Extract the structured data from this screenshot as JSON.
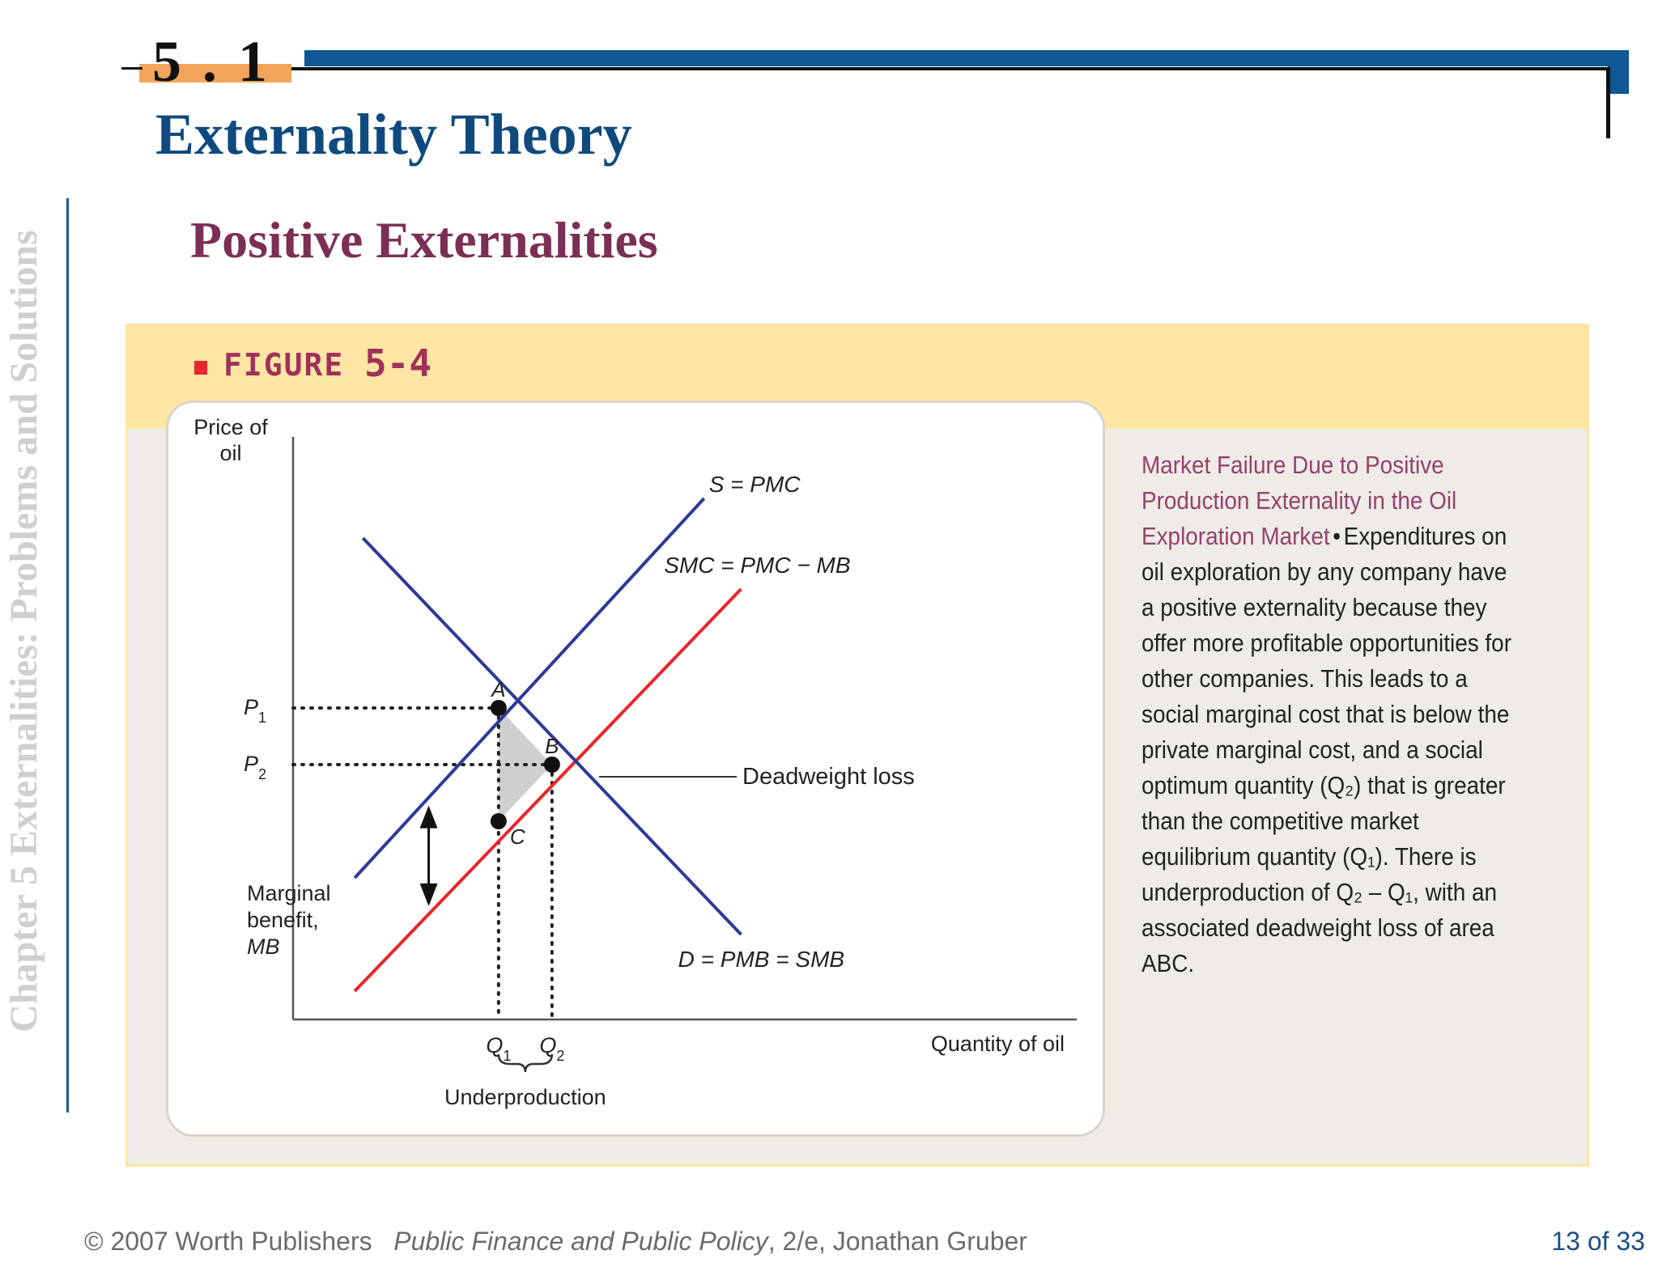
{
  "sidebar": {
    "text": "Chapter 5  Externalities: Problems and Solutions"
  },
  "header": {
    "section_number": "5 . 1",
    "title": "Externality Theory"
  },
  "subtitle": "Positive Externalities",
  "figure": {
    "label_word": "FIGURE",
    "label_number": "5-4"
  },
  "chart_data": {
    "type": "line",
    "title": "",
    "xlabel": "Quantity of oil",
    "ylabel": "Price of oil",
    "ylabel_lines": [
      "Price of",
      "oil"
    ],
    "x_ticks": [
      {
        "main": "Q",
        "sub": "1"
      },
      {
        "main": "Q",
        "sub": "2"
      }
    ],
    "y_ticks": [
      {
        "main": "P",
        "sub": "1"
      },
      {
        "main": "P",
        "sub": "2"
      }
    ],
    "series": [
      {
        "name": "S = PMC",
        "color": "#2d3a96",
        "points": [
          [
            0.15,
            0.25
          ],
          [
            1.0,
            0.92
          ]
        ]
      },
      {
        "name": "SMC  =  PMC  −  MB",
        "color": "#e8262b",
        "points": [
          [
            0.15,
            0.05
          ],
          [
            1.09,
            0.76
          ]
        ]
      },
      {
        "name": "D = PMB  =  SMB",
        "color": "#2d3a96",
        "points": [
          [
            0.17,
            0.85
          ],
          [
            1.09,
            0.15
          ]
        ]
      }
    ],
    "points": [
      {
        "label": "A",
        "x": 0.5,
        "y": 0.55
      },
      {
        "label": "B",
        "x": 0.63,
        "y": 0.45
      },
      {
        "label": "C",
        "x": 0.5,
        "y": 0.35
      }
    ],
    "annotations": {
      "deadweight_loss": "Deadweight loss",
      "marginal_benefit": [
        "Marginal",
        "benefit,",
        "MB"
      ],
      "underproduction": "Underproduction"
    },
    "xlim": [
      0,
      1.3
    ],
    "ylim": [
      0,
      1
    ]
  },
  "caption": {
    "title": "Market Failure Due to Positive Production Externality in the Oil Exploration Market",
    "separator": "•",
    "body": "Expenditures on oil exploration by any company have a positive externality because they offer more profitable opportunities for other companies. This leads to a social marginal cost that is below the private marginal cost, and a social optimum quantity (Q₂) that is greater than the competitive market equilibrium quantity (Q₁). There is underproduction of Q₂ – Q₁, with an associated deadweight loss of area ABC."
  },
  "footer": {
    "copyright": "© 2007 Worth Publishers",
    "book_title": "Public Finance and Public Policy",
    "edition": ", 2/e, Jonathan Gruber",
    "page": "13 of 33"
  }
}
